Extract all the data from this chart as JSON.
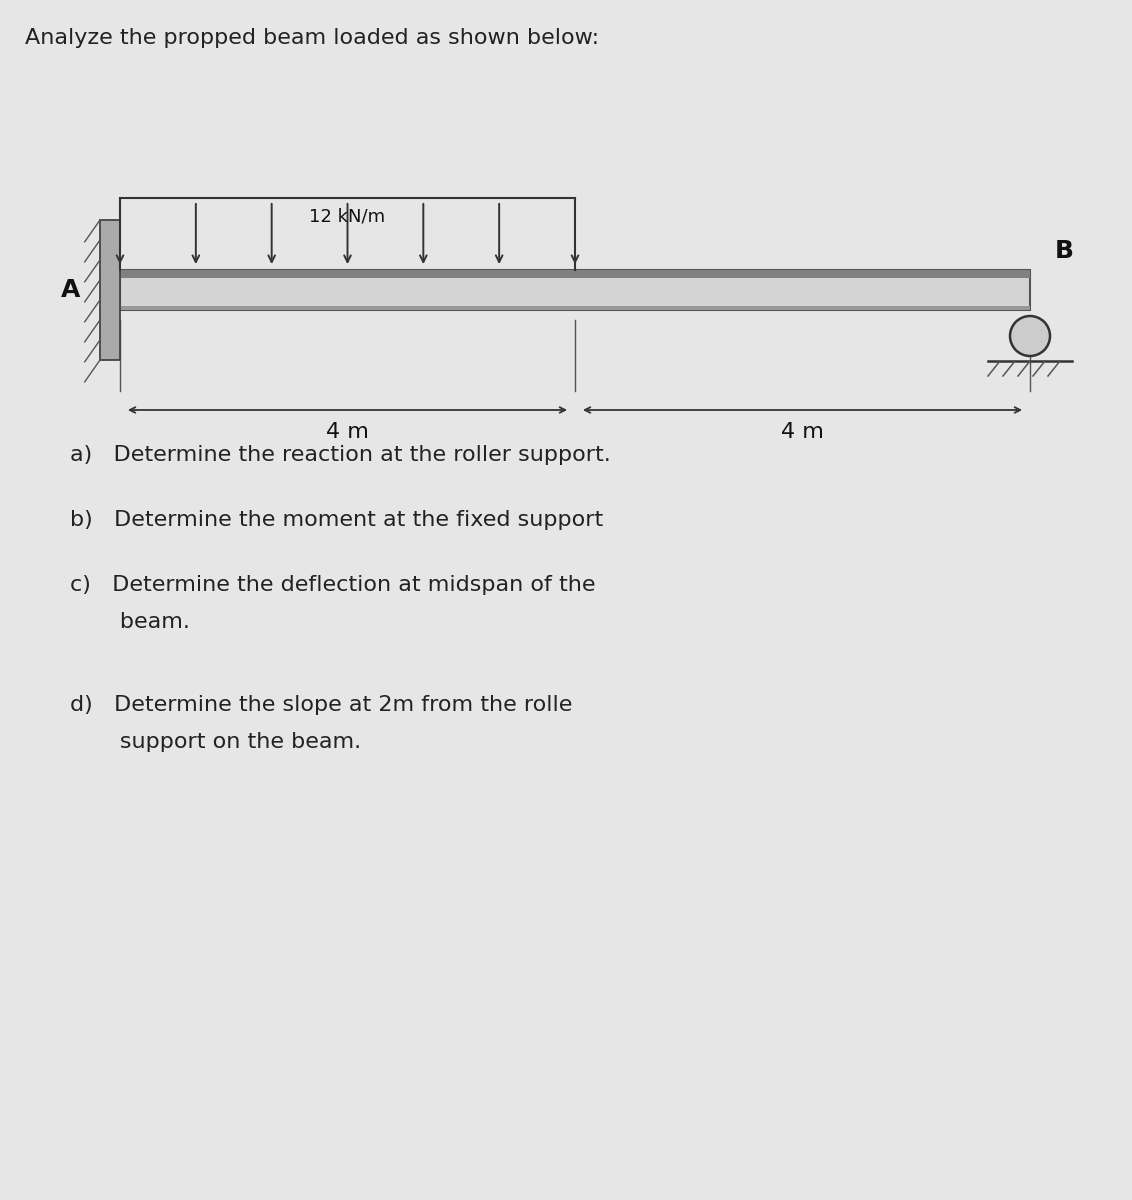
{
  "title": "Analyze the propped beam loaded as shown below:",
  "background_color": "#e6e6e6",
  "beam_fill_light": "#d4d4d4",
  "beam_fill_dark": "#aaaaaa",
  "beam_edge_color": "#555555",
  "wall_color": "#888888",
  "load_label": "12 kN/m",
  "left_label": "A",
  "right_label": "B",
  "dim_left": "4 m",
  "dim_right": "4 m",
  "title_fontsize": 16,
  "label_fontsize": 18,
  "dim_fontsize": 16,
  "load_fontsize": 13,
  "question_fontsize": 16,
  "questions_a": "a)   Determine the reaction at the roller support.",
  "questions_b": "b)   Determine the moment at the fixed support",
  "questions_c1": "c)   Determine the deflection at midspan of the",
  "questions_c2": "       beam.",
  "questions_d1": "d)   Determine the slope at 2m from the rolle",
  "questions_d2": "       support on the beam."
}
